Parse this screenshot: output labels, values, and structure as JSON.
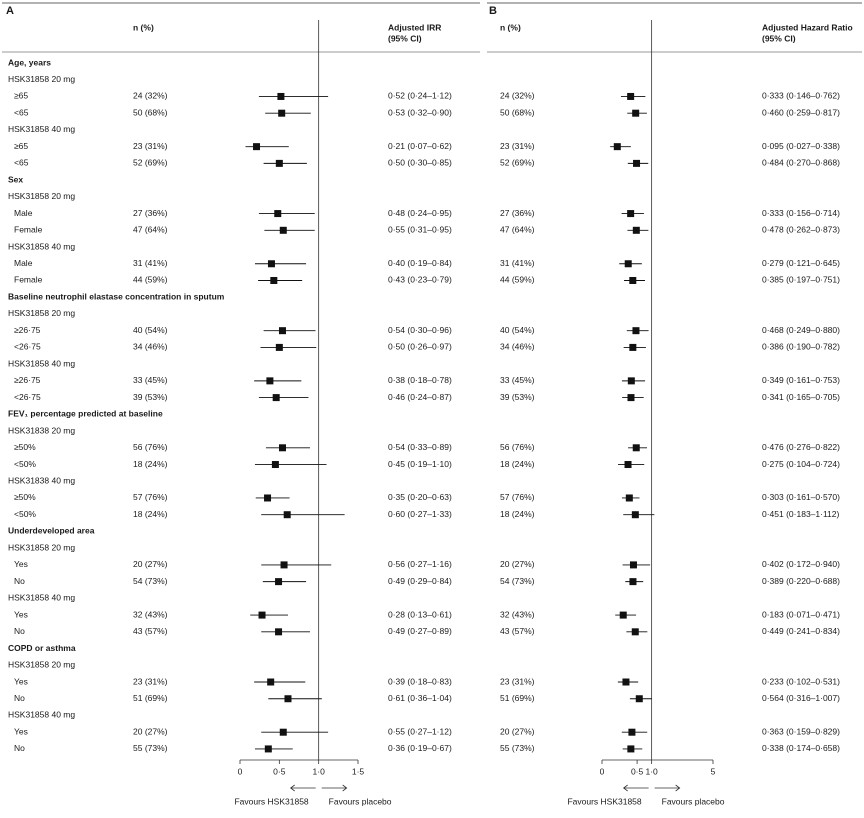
{
  "chart_data": [
    {
      "type": "forest",
      "panel": "A",
      "column_headers": {
        "n": "n (%)",
        "estimate": [
          "Adjusted IRR",
          "(95% CI)"
        ]
      },
      "xscale": "linear",
      "xlim": [
        0,
        1.5
      ],
      "xticks": [
        0,
        {
          "value": 0.5,
          "label": "0·5"
        },
        {
          "value": 1.0,
          "label": "1·0"
        },
        {
          "value": 1.5,
          "label": "1·5"
        }
      ],
      "reference": 1.0,
      "color": "#111111",
      "direction_labels": [
        "Favours HSK31858",
        "Favours placebo"
      ],
      "rows": [
        {
          "label": "Age, years",
          "kind": "section"
        },
        {
          "label": "HSK31858 20 mg",
          "kind": "group"
        },
        {
          "label": "≥65",
          "n": "24 (32%)",
          "value": 0.52,
          "ci": [
            0.24,
            1.12
          ],
          "value_label": "0·52 (0·24–1·12)"
        },
        {
          "label": "<65",
          "n": "50 (68%)",
          "value": 0.53,
          "ci": [
            0.32,
            0.9
          ],
          "value_label": "0·53 (0·32–0·90)"
        },
        {
          "label": "HSK31858 40 mg",
          "kind": "group"
        },
        {
          "label": "≥65",
          "n": "23 (31%)",
          "value": 0.21,
          "ci": [
            0.07,
            0.62
          ],
          "value_label": "0·21 (0·07–0·62)"
        },
        {
          "label": "<65",
          "n": "52 (69%)",
          "value": 0.5,
          "ci": [
            0.3,
            0.85
          ],
          "value_label": "0·50 (0·30–0·85)"
        },
        {
          "label": "Sex",
          "kind": "section"
        },
        {
          "label": "HSK31858 20 mg",
          "kind": "group"
        },
        {
          "label": "Male",
          "n": "27 (36%)",
          "value": 0.48,
          "ci": [
            0.24,
            0.95
          ],
          "value_label": "0·48 (0·24–0·95)"
        },
        {
          "label": "Female",
          "n": "47 (64%)",
          "value": 0.55,
          "ci": [
            0.31,
            0.95
          ],
          "value_label": "0·55 (0·31–0·95)"
        },
        {
          "label": "HSK31858 40 mg",
          "kind": "group"
        },
        {
          "label": "Male",
          "n": "31 (41%)",
          "value": 0.4,
          "ci": [
            0.19,
            0.84
          ],
          "value_label": "0·40 (0·19–0·84)"
        },
        {
          "label": "Female",
          "n": "44 (59%)",
          "value": 0.43,
          "ci": [
            0.23,
            0.79
          ],
          "value_label": "0·43 (0·23–0·79)"
        },
        {
          "label": "Baseline neutrophil elastase concentration in sputum",
          "kind": "section"
        },
        {
          "label": "HSK31858 20 mg",
          "kind": "group"
        },
        {
          "label": "≥26·75",
          "n": "40 (54%)",
          "value": 0.54,
          "ci": [
            0.3,
            0.96
          ],
          "value_label": "0·54 (0·30–0·96)"
        },
        {
          "label": "<26·75",
          "n": "34 (46%)",
          "value": 0.5,
          "ci": [
            0.26,
            0.97
          ],
          "value_label": "0·50 (0·26–0·97)"
        },
        {
          "label": "HSK31858 40 mg",
          "kind": "group"
        },
        {
          "label": "≥26·75",
          "n": "33 (45%)",
          "value": 0.38,
          "ci": [
            0.18,
            0.78
          ],
          "value_label": "0·38 (0·18–0·78)"
        },
        {
          "label": "<26·75",
          "n": "39 (53%)",
          "value": 0.46,
          "ci": [
            0.24,
            0.87
          ],
          "value_label": "0·46 (0·24–0·87)"
        },
        {
          "label": "FEV₁ percentage predicted at baseline",
          "kind": "section"
        },
        {
          "label": "HSK31838 20 mg",
          "kind": "group"
        },
        {
          "label": "≥50%",
          "n": "56 (76%)",
          "value": 0.54,
          "ci": [
            0.33,
            0.89
          ],
          "value_label": "0·54 (0·33–0·89)"
        },
        {
          "label": "<50%",
          "n": "18 (24%)",
          "value": 0.45,
          "ci": [
            0.19,
            1.1
          ],
          "value_label": "0·45 (0·19–1·10)"
        },
        {
          "label": "HSK31838 40 mg",
          "kind": "group"
        },
        {
          "label": "≥50%",
          "n": "57 (76%)",
          "value": 0.35,
          "ci": [
            0.2,
            0.63
          ],
          "value_label": "0·35 (0·20–0·63)"
        },
        {
          "label": "<50%",
          "n": "18 (24%)",
          "value": 0.6,
          "ci": [
            0.27,
            1.33
          ],
          "value_label": "0·60 (0·27–1·33)"
        },
        {
          "label": "Underdeveloped area",
          "kind": "section"
        },
        {
          "label": "HSK31858 20 mg",
          "kind": "group"
        },
        {
          "label": "Yes",
          "n": "20 (27%)",
          "value": 0.56,
          "ci": [
            0.27,
            1.16
          ],
          "value_label": "0·56 (0·27–1·16)"
        },
        {
          "label": "No",
          "n": "54 (73%)",
          "value": 0.49,
          "ci": [
            0.29,
            0.84
          ],
          "value_label": "0·49 (0·29–0·84)"
        },
        {
          "label": "HSK31858 40 mg",
          "kind": "group"
        },
        {
          "label": "Yes",
          "n": "32 (43%)",
          "value": 0.28,
          "ci": [
            0.13,
            0.61
          ],
          "value_label": "0·28 (0·13–0·61)"
        },
        {
          "label": "No",
          "n": "43 (57%)",
          "value": 0.49,
          "ci": [
            0.27,
            0.89
          ],
          "value_label": "0·49 (0·27–0·89)"
        },
        {
          "label": "COPD or asthma",
          "kind": "section"
        },
        {
          "label": "HSK31858 20 mg",
          "kind": "group"
        },
        {
          "label": "Yes",
          "n": "23 (31%)",
          "value": 0.39,
          "ci": [
            0.18,
            0.83
          ],
          "value_label": "0·39 (0·18–0·83)"
        },
        {
          "label": "No",
          "n": "51 (69%)",
          "value": 0.61,
          "ci": [
            0.36,
            1.04
          ],
          "value_label": "0·61 (0·36–1·04)"
        },
        {
          "label": "HSK31858 40 mg",
          "kind": "group"
        },
        {
          "label": "Yes",
          "n": "20 (27%)",
          "value": 0.55,
          "ci": [
            0.27,
            1.12
          ],
          "value_label": "0·55 (0·27–1·12)"
        },
        {
          "label": "No",
          "n": "55 (73%)",
          "value": 0.36,
          "ci": [
            0.19,
            0.67
          ],
          "value_label": "0·36 (0·19–0·67)"
        }
      ]
    },
    {
      "type": "forest",
      "panel": "B",
      "column_headers": {
        "n": "n (%)",
        "estimate": [
          "Adjusted Hazard Ratio",
          "(95% CI)"
        ]
      },
      "xscale": "sqrt",
      "xlim": [
        0,
        5
      ],
      "xticks": [
        0,
        {
          "value": 0.5,
          "label": "0·5"
        },
        {
          "value": 1.0,
          "label": "1·0"
        },
        5
      ],
      "reference": 1.0,
      "color": "#111111",
      "direction_labels": [
        "Favours HSK31858",
        "Favours placebo"
      ],
      "rows": [
        null,
        null,
        {
          "n": "24 (32%)",
          "value": 0.333,
          "ci": [
            0.146,
            0.762
          ],
          "value_label": "0·333 (0·146–0·762)"
        },
        {
          "n": "50 (68%)",
          "value": 0.46,
          "ci": [
            0.259,
            0.817
          ],
          "value_label": "0·460 (0·259–0·817)"
        },
        null,
        {
          "n": "23 (31%)",
          "value": 0.095,
          "ci": [
            0.027,
            0.338
          ],
          "value_label": "0·095 (0·027–0·338)"
        },
        {
          "n": "52 (69%)",
          "value": 0.484,
          "ci": [
            0.27,
            0.868
          ],
          "value_label": "0·484 (0·270–0·868)"
        },
        null,
        null,
        {
          "n": "27 (36%)",
          "value": 0.333,
          "ci": [
            0.156,
            0.714
          ],
          "value_label": "0·333 (0·156–0·714)"
        },
        {
          "n": "47 (64%)",
          "value": 0.478,
          "ci": [
            0.262,
            0.873
          ],
          "value_label": "0·478 (0·262–0·873)"
        },
        null,
        {
          "n": "31 (41%)",
          "value": 0.279,
          "ci": [
            0.121,
            0.645
          ],
          "value_label": "0·279 (0·121–0·645)"
        },
        {
          "n": "44 (59%)",
          "value": 0.385,
          "ci": [
            0.197,
            0.751
          ],
          "value_label": "0·385 (0·197–0·751)"
        },
        null,
        null,
        {
          "n": "40 (54%)",
          "value": 0.468,
          "ci": [
            0.249,
            0.88
          ],
          "value_label": "0·468 (0·249–0·880)"
        },
        {
          "n": "34 (46%)",
          "value": 0.386,
          "ci": [
            0.19,
            0.782
          ],
          "value_label": "0·386 (0·190–0·782)"
        },
        null,
        {
          "n": "33 (45%)",
          "value": 0.349,
          "ci": [
            0.161,
            0.753
          ],
          "value_label": "0·349 (0·161–0·753)"
        },
        {
          "n": "39 (53%)",
          "value": 0.341,
          "ci": [
            0.165,
            0.705
          ],
          "value_label": "0·341 (0·165–0·705)"
        },
        null,
        null,
        {
          "n": "56 (76%)",
          "value": 0.476,
          "ci": [
            0.276,
            0.822
          ],
          "value_label": "0·476 (0·276–0·822)"
        },
        {
          "n": "18 (24%)",
          "value": 0.275,
          "ci": [
            0.104,
            0.724
          ],
          "value_label": "0·275 (0·104–0·724)"
        },
        null,
        {
          "n": "57 (76%)",
          "value": 0.303,
          "ci": [
            0.161,
            0.57
          ],
          "value_label": "0·303 (0·161–0·570)"
        },
        {
          "n": "18 (24%)",
          "value": 0.451,
          "ci": [
            0.183,
            1.112
          ],
          "value_label": "0·451 (0·183–1·112)"
        },
        null,
        null,
        {
          "n": "20 (27%)",
          "value": 0.402,
          "ci": [
            0.172,
            0.94
          ],
          "value_label": "0·402 (0·172–0·940)"
        },
        {
          "n": "54 (73%)",
          "value": 0.389,
          "ci": [
            0.22,
            0.688
          ],
          "value_label": "0·389 (0·220–0·688)"
        },
        null,
        {
          "n": "32 (43%)",
          "value": 0.183,
          "ci": [
            0.071,
            0.471
          ],
          "value_label": "0·183 (0·071–0·471)"
        },
        {
          "n": "43 (57%)",
          "value": 0.449,
          "ci": [
            0.241,
            0.834
          ],
          "value_label": "0·449 (0·241–0·834)"
        },
        null,
        null,
        {
          "n": "23 (31%)",
          "value": 0.233,
          "ci": [
            0.102,
            0.531
          ],
          "value_label": "0·233 (0·102–0·531)"
        },
        {
          "n": "51 (69%)",
          "value": 0.564,
          "ci": [
            0.316,
            1.007
          ],
          "value_label": "0·564 (0·316–1·007)"
        },
        null,
        {
          "n": "20 (27%)",
          "value": 0.363,
          "ci": [
            0.159,
            0.829
          ],
          "value_label": "0·363 (0·159–0·829)"
        },
        {
          "n": "55 (73%)",
          "value": 0.338,
          "ci": [
            0.174,
            0.658
          ],
          "value_label": "0·338 (0·174–0·658)"
        }
      ]
    }
  ]
}
